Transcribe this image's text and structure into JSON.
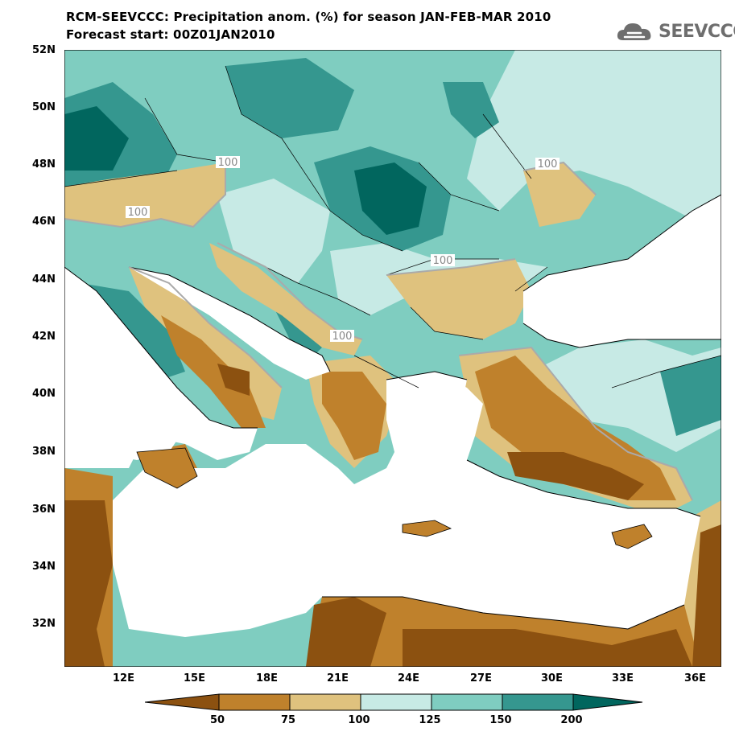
{
  "header": {
    "title": "RCM-SEEVCCC: Precipitation anom. (%) for season JAN-FEB-MAR 2010",
    "subtitle": "Forecast start: 00Z01JAN2010"
  },
  "logo": {
    "text": "SEEVCCC",
    "icon": "cloud-icon"
  },
  "map": {
    "lat_labels": [
      "52N",
      "50N",
      "48N",
      "46N",
      "44N",
      "42N",
      "40N",
      "38N",
      "36N",
      "34N",
      "32N"
    ],
    "lon_labels": [
      "12E",
      "15E",
      "18E",
      "21E",
      "24E",
      "27E",
      "30E",
      "33E",
      "36E"
    ],
    "contour_labels": [
      "100",
      "100",
      "100",
      "100",
      "100"
    ],
    "colors": {
      "lt50": "#8c5110",
      "50_75": "#bf812c",
      "75_100": "#dfc27e",
      "100_125": "#c7eae5",
      "125_150": "#7fcdc0",
      "150_200": "#35978f",
      "gt200": "#01665e",
      "sea": "#ffffff"
    }
  },
  "colorbar": {
    "labels": [
      "50",
      "75",
      "100",
      "125",
      "150",
      "200"
    ]
  }
}
